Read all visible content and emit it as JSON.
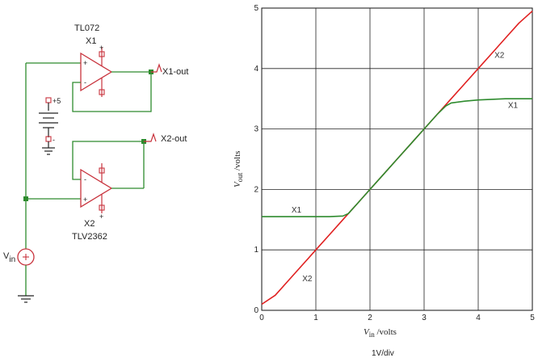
{
  "schematic": {
    "opamp1_model": "TL072",
    "opamp1_ref": "X1",
    "opamp2_model": "TLV2362",
    "opamp2_ref": "X2",
    "out1_label": "X1-out",
    "out2_label": "X2-out",
    "supply_pos": "+5",
    "supply_neg": "-",
    "source_main": "V",
    "source_sub": "in",
    "plus_sign": "+",
    "minus_sign": "-",
    "wire_color": "#2e8b2e",
    "component_color": "#c8323c"
  },
  "chart_data": {
    "type": "line",
    "x": [
      0,
      0.25,
      0.5,
      0.75,
      1.0,
      1.25,
      1.5,
      1.6,
      1.75,
      2.0,
      2.25,
      2.5,
      2.75,
      3.0,
      3.25,
      3.4,
      3.5,
      3.75,
      4.0,
      4.25,
      4.5,
      4.75,
      5.0
    ],
    "series": [
      {
        "name": "X1",
        "color": "#2e8b2e",
        "values": [
          1.55,
          1.55,
          1.55,
          1.55,
          1.55,
          1.55,
          1.56,
          1.6,
          1.75,
          2.0,
          2.25,
          2.5,
          2.75,
          3.0,
          3.25,
          3.38,
          3.43,
          3.46,
          3.48,
          3.49,
          3.5,
          3.5,
          3.5
        ]
      },
      {
        "name": "X2",
        "color": "#e02020",
        "values": [
          0.1,
          0.25,
          0.5,
          0.75,
          1.0,
          1.25,
          1.5,
          1.6,
          1.75,
          2.0,
          2.25,
          2.5,
          2.75,
          3.0,
          3.25,
          3.4,
          3.5,
          3.75,
          4.0,
          4.25,
          4.5,
          4.75,
          4.95
        ]
      }
    ],
    "xlim": [
      0,
      5
    ],
    "ylim": [
      0,
      5
    ],
    "x_ticks": [
      "0",
      "1",
      "2",
      "3",
      "4",
      "5"
    ],
    "y_ticks": [
      "0",
      "1",
      "2",
      "3",
      "4",
      "5"
    ],
    "xlabel_main": "V",
    "xlabel_sub": "in",
    "xlabel_unit": " /volts",
    "ylabel_main": "V",
    "ylabel_sub": "out",
    "ylabel_unit": " /volts",
    "footer": "1V/div",
    "grid": true
  }
}
